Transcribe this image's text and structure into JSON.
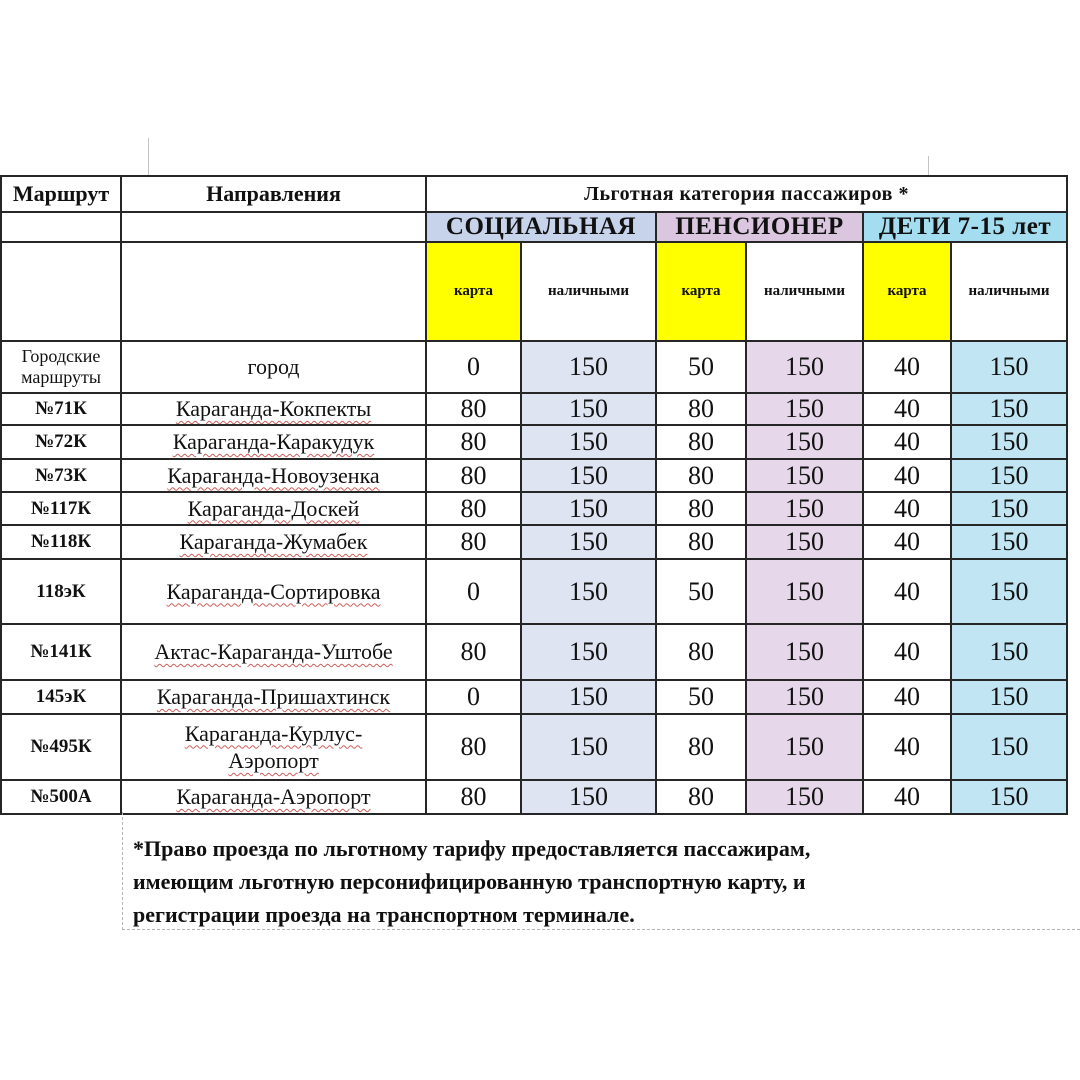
{
  "table": {
    "header": {
      "route_col": "Маршрут",
      "directions_col": "Направления",
      "category_title": "Льготная категория пассажиров *",
      "categories": [
        {
          "label": "СОЦИАЛЬНАЯ",
          "header_bg": "#c6d3ea",
          "cell_bg": "#dee4f2"
        },
        {
          "label": "ПЕНСИОНЕР",
          "header_bg": "#dbc6e0",
          "cell_bg": "#e6d8ea"
        },
        {
          "label": "ДЕТИ 7-15 лет",
          "header_bg": "#a4dcf0",
          "cell_bg": "#c2e5f3"
        }
      ],
      "pay_types": {
        "card": "карта",
        "cash": "наличными"
      },
      "card_header_bg": "#ffff00",
      "card_cell_bg": "#ffffff"
    },
    "rows": [
      {
        "route": "Городские маршруты",
        "direction": "город",
        "fares": [
          0,
          150,
          50,
          150,
          40,
          150
        ],
        "plain_route": true,
        "spellcheck_underline": false
      },
      {
        "route": "№71К",
        "direction": "Караганда-Кокпекты",
        "fares": [
          80,
          150,
          80,
          150,
          40,
          150
        ],
        "spellcheck_underline": true
      },
      {
        "route": "№72К",
        "direction": "Караганда-Каракудук",
        "fares": [
          80,
          150,
          80,
          150,
          40,
          150
        ],
        "spellcheck_underline": true
      },
      {
        "route": "№73К",
        "direction": "Караганда-Новоузенка",
        "fares": [
          80,
          150,
          80,
          150,
          40,
          150
        ],
        "spellcheck_underline": true
      },
      {
        "route": "№117К",
        "direction": "Караганда-Доскей",
        "fares": [
          80,
          150,
          80,
          150,
          40,
          150
        ],
        "spellcheck_underline": true
      },
      {
        "route": "№118К",
        "direction": "Караганда-Жумабек",
        "fares": [
          80,
          150,
          80,
          150,
          40,
          150
        ],
        "spellcheck_underline": true
      },
      {
        "route": "118эК",
        "direction": "Караганда-Сортировка",
        "fares": [
          0,
          150,
          50,
          150,
          40,
          150
        ],
        "spellcheck_underline": true
      },
      {
        "route": "№141К",
        "direction": "Актас-Караганда-Уштобе",
        "fares": [
          80,
          150,
          80,
          150,
          40,
          150
        ],
        "spellcheck_underline": true
      },
      {
        "route": "145эК",
        "direction": "Караганда-Пришахтинск",
        "fares": [
          0,
          150,
          50,
          150,
          40,
          150
        ],
        "spellcheck_underline": true
      },
      {
        "route": "№495К",
        "direction": "Караганда-Курлус-Аэропорт",
        "fares": [
          80,
          150,
          80,
          150,
          40,
          150
        ],
        "spellcheck_underline": true,
        "wrap_direction": true
      },
      {
        "route": "№500А",
        "direction": "Караганда-Аэропорт",
        "fares": [
          80,
          150,
          80,
          150,
          40,
          150
        ],
        "spellcheck_underline": true
      }
    ]
  },
  "footnote": {
    "lines": [
      "*Право проезда по льготному тарифу предоставляется пассажирам,",
      "имеющим льготную персонифицированную транспортную карту, и",
      "регистрации проезда на транспортном терминале."
    ]
  }
}
